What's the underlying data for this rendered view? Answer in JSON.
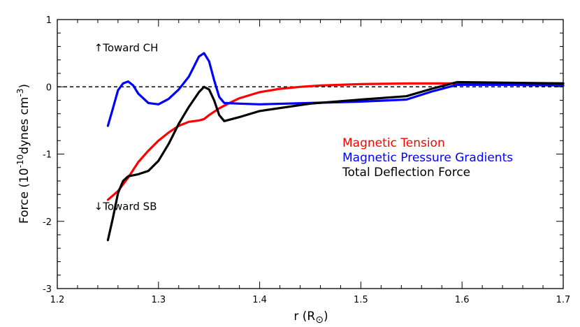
{
  "chart_data": {
    "type": "line",
    "xlabel": "r (R",
    "xlabel_subscript": "⊙",
    "xlabel_suffix": ")",
    "ylabel": "Force (10",
    "ylabel_exp1": "-10",
    "ylabel_mid": "dynes cm",
    "ylabel_exp2": "-3",
    "ylabel_suffix": ")",
    "xlim": [
      1.2,
      1.7
    ],
    "ylim": [
      -3,
      1
    ],
    "x_ticks": [
      1.2,
      1.3,
      1.4,
      1.5,
      1.6,
      1.7
    ],
    "x_tick_labels": [
      "1.2",
      "1.3",
      "1.4",
      "1.5",
      "1.6",
      "1.7"
    ],
    "y_ticks": [
      -3,
      -2,
      -1,
      0,
      1
    ],
    "y_tick_labels": [
      "-3",
      "-2",
      "-1",
      "0",
      "1"
    ],
    "zero_line": "dashed",
    "series": [
      {
        "name": "Magnetic Tension",
        "color": "#ff0000",
        "x": [
          1.25,
          1.26,
          1.27,
          1.28,
          1.29,
          1.3,
          1.31,
          1.32,
          1.33,
          1.34,
          1.345,
          1.35,
          1.36,
          1.37,
          1.38,
          1.4,
          1.42,
          1.44,
          1.46,
          1.5,
          1.55,
          1.6,
          1.65,
          1.7
        ],
        "values": [
          -1.68,
          -1.55,
          -1.35,
          -1.12,
          -0.95,
          -0.8,
          -0.68,
          -0.58,
          -0.52,
          -0.5,
          -0.48,
          -0.42,
          -0.32,
          -0.24,
          -0.17,
          -0.08,
          -0.03,
          0.0,
          0.02,
          0.04,
          0.05,
          0.05,
          0.05,
          0.05
        ]
      },
      {
        "name": "Magnetic Pressure Gradients",
        "color": "#0000ff",
        "x": [
          1.25,
          1.255,
          1.26,
          1.265,
          1.27,
          1.275,
          1.28,
          1.29,
          1.3,
          1.31,
          1.32,
          1.33,
          1.335,
          1.34,
          1.345,
          1.35,
          1.355,
          1.36,
          1.365,
          1.38,
          1.4,
          1.45,
          1.5,
          1.545,
          1.57,
          1.595,
          1.65,
          1.7
        ],
        "values": [
          -0.58,
          -0.32,
          -0.05,
          0.05,
          0.08,
          0.02,
          -0.1,
          -0.24,
          -0.26,
          -0.18,
          -0.04,
          0.15,
          0.3,
          0.45,
          0.5,
          0.38,
          0.1,
          -0.15,
          -0.24,
          -0.25,
          -0.26,
          -0.24,
          -0.22,
          -0.19,
          -0.07,
          0.03,
          0.03,
          0.02
        ]
      },
      {
        "name": "Total Deflection Force",
        "color": "#000000",
        "x": [
          1.25,
          1.255,
          1.26,
          1.265,
          1.27,
          1.28,
          1.29,
          1.3,
          1.31,
          1.32,
          1.33,
          1.34,
          1.345,
          1.35,
          1.355,
          1.36,
          1.365,
          1.38,
          1.4,
          1.45,
          1.5,
          1.545,
          1.57,
          1.595,
          1.65,
          1.7
        ],
        "values": [
          -2.28,
          -1.95,
          -1.58,
          -1.4,
          -1.33,
          -1.3,
          -1.25,
          -1.1,
          -0.85,
          -0.55,
          -0.3,
          -0.08,
          0.0,
          -0.04,
          -0.2,
          -0.42,
          -0.51,
          -0.45,
          -0.36,
          -0.25,
          -0.19,
          -0.14,
          -0.03,
          0.07,
          0.06,
          0.05
        ]
      }
    ],
    "legend": {
      "position": "right",
      "entries": [
        {
          "label": "Magnetic Tension",
          "color": "#ff0000"
        },
        {
          "label": "Magnetic Pressure Gradients",
          "color": "#0000ff"
        },
        {
          "label": "Total Deflection Force",
          "color": "#000000"
        }
      ]
    },
    "annotations": [
      {
        "text": "↑Toward CH",
        "x": 1.293,
        "y": 0.58
      },
      {
        "text": "↓Toward SB",
        "x": 1.293,
        "y": -1.78
      }
    ]
  }
}
